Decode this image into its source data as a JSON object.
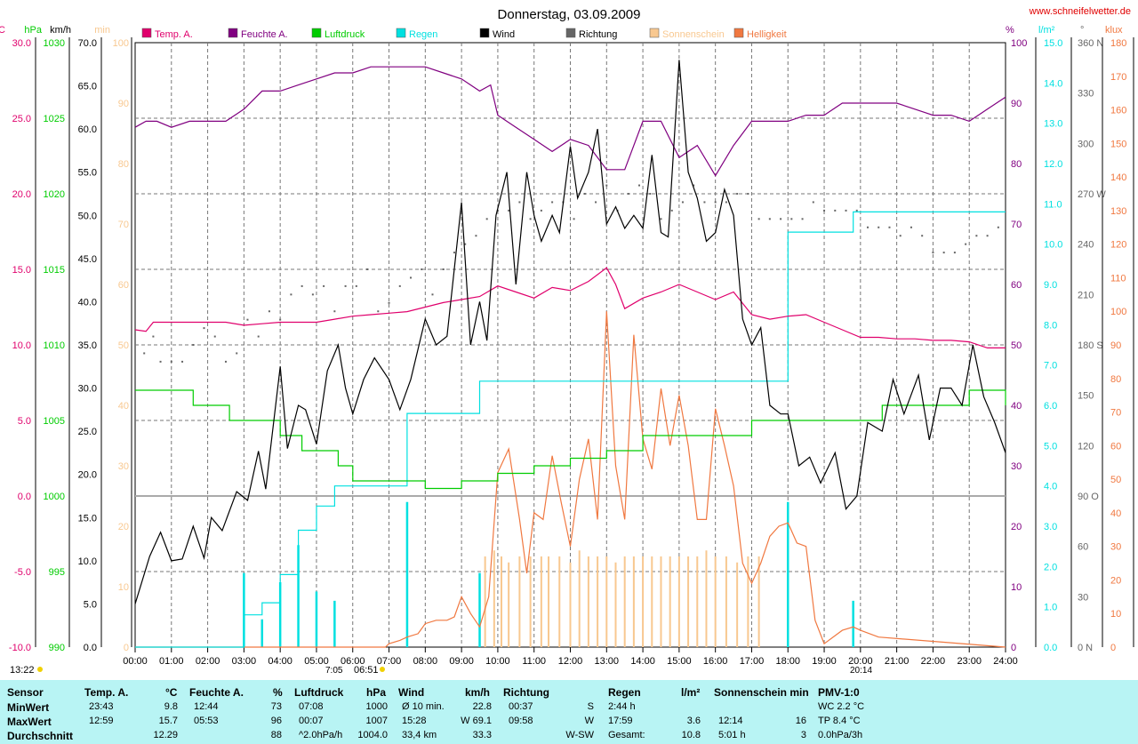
{
  "page": {
    "title": "Donnerstag, 03.09.2009",
    "site": "www.schneifelwetter.de",
    "sunrise_left": "13:22",
    "sunrise_mark": "7:05",
    "sunrise_time": "06:51",
    "sunset_mark": "20:14"
  },
  "colors": {
    "temp": "#e0006c",
    "humidity": "#800080",
    "pressure": "#00cc00",
    "rain": "#00e0e0",
    "wind": "#000000",
    "direction": "#666666",
    "sunshine": "#f8c890",
    "brightness": "#f07840",
    "stats_bg": "#b8f4f4"
  },
  "legend": [
    {
      "label": "Temp. A.",
      "color": "#e0006c"
    },
    {
      "label": "Feuchte A.",
      "color": "#800080"
    },
    {
      "label": "Luftdruck",
      "color": "#00cc00"
    },
    {
      "label": "Regen",
      "color": "#00e0e0"
    },
    {
      "label": "Wind",
      "color": "#000000"
    },
    {
      "label": "Richtung",
      "color": "#666666"
    },
    {
      "label": "Sonnenschein",
      "color": "#f8c890"
    },
    {
      "label": "Helligkeit",
      "color": "#f07840"
    }
  ],
  "axes": {
    "temp": {
      "unit": "°C",
      "min": -10,
      "max": 30,
      "ticks": [
        "30.0",
        "25.0",
        "20.0",
        "15.0",
        "10.0",
        "5.0",
        "0.0",
        "-5.0",
        "-10.0"
      ]
    },
    "pressure": {
      "unit": "hPa",
      "min": 990,
      "max": 1030,
      "ticks": [
        "1030",
        "1025",
        "1020",
        "1015",
        "1010",
        "1005",
        "1000",
        "995",
        "990"
      ]
    },
    "wind": {
      "unit": "km/h",
      "min": 0,
      "max": 70,
      "ticks": [
        "70.0",
        "65.0",
        "60.0",
        "55.0",
        "50.0",
        "45.0",
        "40.0",
        "35.0",
        "30.0",
        "25.0",
        "20.0",
        "15.0",
        "10.0",
        "5.0",
        "0.0"
      ]
    },
    "sunshine": {
      "unit": "min",
      "min": 0,
      "max": 100,
      "ticks": [
        "100",
        "90",
        "80",
        "70",
        "60",
        "50",
        "40",
        "30",
        "20",
        "10",
        "0"
      ]
    },
    "humidity": {
      "unit": "%",
      "min": 0,
      "max": 100,
      "ticks": [
        "100",
        "90",
        "80",
        "70",
        "60",
        "50",
        "40",
        "30",
        "20",
        "10",
        "0"
      ]
    },
    "rain": {
      "unit": "l/m²",
      "min": 0,
      "max": 15,
      "ticks": [
        "15.0",
        "14.0",
        "13.0",
        "12.0",
        "11.0",
        "10.0",
        "9.0",
        "8.0",
        "7.0",
        "6.0",
        "5.0",
        "4.0",
        "3.0",
        "2.0",
        "1.0",
        "0.0"
      ]
    },
    "direction": {
      "unit": "°",
      "min": 0,
      "max": 360,
      "ticks": [
        "360 N",
        "330",
        "300",
        "270 W",
        "240",
        "210",
        "180 S",
        "150",
        "120",
        "90 O",
        "60",
        "30",
        "0 N"
      ]
    },
    "brightness": {
      "unit": "klux",
      "min": 0,
      "max": 180,
      "ticks": [
        "180",
        "170",
        "160",
        "150",
        "140",
        "130",
        "120",
        "110",
        "100",
        "90",
        "80",
        "70",
        "60",
        "50",
        "40",
        "30",
        "20",
        "10",
        "0"
      ]
    },
    "time_ticks": [
      "00:00",
      "01:00",
      "02:00",
      "03:00",
      "04:00",
      "05:00",
      "06:00",
      "07:00",
      "08:00",
      "09:00",
      "10:00",
      "11:00",
      "12:00",
      "13:00",
      "14:00",
      "15:00",
      "16:00",
      "17:00",
      "18:00",
      "19:00",
      "20:00",
      "21:00",
      "22:00",
      "23:00",
      "24:00"
    ]
  },
  "chart_data": {
    "type": "line",
    "title": "Donnerstag, 03.09.2009",
    "x_range": [
      0,
      24
    ],
    "grid": true,
    "legend_placement": "top",
    "series": [
      {
        "name": "Temp. A.",
        "unit": "°C",
        "x": [
          0,
          0.3,
          0.5,
          1,
          1.5,
          2,
          2.5,
          3,
          3.5,
          4,
          4.5,
          5,
          5.5,
          6,
          6.5,
          7,
          7.5,
          8,
          8.5,
          9,
          9.5,
          10,
          10.5,
          11,
          11.5,
          12,
          12.5,
          13,
          13.25,
          13.5,
          14,
          14.5,
          15,
          15.5,
          16,
          16.5,
          17,
          17.5,
          18,
          18.5,
          19,
          19.5,
          20,
          20.5,
          21,
          21.5,
          22,
          22.5,
          23,
          23.5,
          24
        ],
        "y": [
          11.0,
          10.9,
          11.5,
          11.5,
          11.5,
          11.5,
          11.5,
          11.3,
          11.4,
          11.5,
          11.5,
          11.5,
          11.7,
          11.9,
          12.0,
          12.1,
          12.2,
          12.5,
          12.8,
          13.0,
          13.2,
          13.9,
          13.5,
          13.1,
          13.8,
          13.6,
          14.2,
          15.1,
          14.0,
          12.4,
          13.1,
          13.5,
          14.0,
          13.5,
          13.0,
          13.5,
          12.0,
          11.7,
          11.9,
          12.0,
          11.5,
          11.0,
          10.5,
          10.5,
          10.4,
          10.4,
          10.3,
          10.3,
          10.2,
          9.8,
          9.8
        ]
      },
      {
        "name": "Feuchte A.",
        "unit": "%",
        "x": [
          0,
          0.3,
          0.6,
          1,
          1.5,
          2,
          2.5,
          3,
          3.5,
          4,
          4.5,
          5,
          5.5,
          6,
          6.5,
          7,
          7.5,
          8,
          8.5,
          9,
          9.5,
          9.8,
          10,
          10.5,
          11,
          11.5,
          12,
          12.5,
          13,
          13.5,
          14,
          14.5,
          15,
          15.5,
          16,
          16.5,
          17,
          17.5,
          18,
          18.5,
          19,
          19.5,
          20,
          20.5,
          21,
          21.5,
          22,
          22.5,
          23,
          23.5,
          24
        ],
        "y": [
          86,
          87,
          87,
          86,
          87,
          87,
          87,
          89,
          92,
          92,
          93,
          94,
          95,
          95,
          96,
          96,
          96,
          96,
          95,
          94,
          92,
          93,
          88,
          86,
          84,
          82,
          84,
          83,
          79,
          79,
          87,
          87,
          81,
          83,
          78,
          83,
          87,
          87,
          87,
          88,
          88,
          90,
          90,
          90,
          90,
          89,
          88,
          88,
          87,
          89,
          91
        ]
      },
      {
        "name": "Luftdruck",
        "unit": "hPa",
        "x": [
          0,
          0.6,
          1,
          1.6,
          2,
          2.6,
          3,
          3.6,
          4,
          4.6,
          5,
          5.6,
          6,
          6.6,
          7,
          7.6,
          8,
          8.6,
          9,
          9.6,
          10,
          10.6,
          11,
          11.6,
          12,
          12.6,
          13,
          13.6,
          14,
          14.6,
          15,
          15.6,
          16,
          16.6,
          17,
          17.6,
          18,
          18.6,
          19,
          19.6,
          20,
          20.6,
          21,
          21.6,
          22,
          22.6,
          23,
          23.6,
          24
        ],
        "y": [
          1007,
          1007,
          1007,
          1006,
          1006,
          1005,
          1005,
          1005,
          1004,
          1003,
          1003,
          1002,
          1001,
          1001,
          1001,
          1001,
          1000.5,
          1000.5,
          1001,
          1001,
          1001.5,
          1001.5,
          1002,
          1002,
          1002.5,
          1002.5,
          1003,
          1003,
          1004,
          1004,
          1004,
          1004,
          1004,
          1004,
          1005,
          1005,
          1005,
          1005,
          1005,
          1005,
          1005,
          1006,
          1006,
          1006,
          1006,
          1006,
          1007,
          1007,
          1006
        ]
      },
      {
        "name": "Regen",
        "unit": "l/m²",
        "x": [
          0,
          2.7,
          3,
          3.5,
          4,
          4.5,
          5,
          5.5,
          6,
          6.5,
          7,
          7.25,
          7.5,
          8,
          8.5,
          9,
          9.3,
          9.5,
          10,
          11,
          12,
          13,
          14,
          15,
          16,
          17,
          17.9,
          18,
          19,
          19.5,
          19.8,
          20,
          21,
          22,
          23,
          24
        ],
        "y": [
          0,
          0,
          0.8,
          1.1,
          1.8,
          2.9,
          3.5,
          4.0,
          4.0,
          4.0,
          4.0,
          4.0,
          5.8,
          5.8,
          5.8,
          5.8,
          5.8,
          6.6,
          6.6,
          6.6,
          6.6,
          6.6,
          6.6,
          6.6,
          6.6,
          6.6,
          6.6,
          10.3,
          10.3,
          10.3,
          10.8,
          10.8,
          10.8,
          10.8,
          10.8,
          10.8
        ]
      },
      {
        "name": "Wind",
        "unit": "km/h",
        "x": [
          0,
          0.4,
          0.7,
          1,
          1.3,
          1.6,
          1.9,
          2.1,
          2.4,
          2.8,
          3.1,
          3.4,
          3.6,
          4,
          4.2,
          4.5,
          4.7,
          5,
          5.3,
          5.6,
          5.8,
          6,
          6.3,
          6.6,
          7,
          7.3,
          7.6,
          8,
          8.3,
          8.6,
          9,
          9.25,
          9.5,
          9.7,
          9.95,
          10.25,
          10.5,
          10.8,
          11,
          11.2,
          11.5,
          11.7,
          12,
          12.2,
          12.5,
          12.75,
          13,
          13.25,
          13.5,
          13.75,
          14,
          14.25,
          14.5,
          14.7,
          15,
          15.25,
          15.5,
          15.75,
          16,
          16.25,
          16.5,
          16.75,
          17,
          17.25,
          17.5,
          17.8,
          18,
          18.3,
          18.6,
          18.9,
          19.3,
          19.6,
          19.9,
          20.2,
          20.6,
          20.9,
          21.2,
          21.6,
          21.9,
          22.2,
          22.5,
          22.8,
          23.1,
          23.4,
          23.7,
          24
        ],
        "y": [
          5,
          10.5,
          13.3,
          10,
          10.2,
          14,
          10.3,
          15,
          13.5,
          18,
          17,
          22.7,
          18.3,
          32.5,
          23,
          28,
          27.5,
          23.5,
          32,
          35,
          30,
          27,
          31,
          33.5,
          31,
          27.5,
          31,
          38,
          35,
          36,
          51.5,
          35,
          40,
          35.5,
          50,
          55,
          42,
          55,
          50,
          47,
          50,
          48,
          58,
          52,
          55,
          60,
          49,
          51,
          48.5,
          50,
          48.5,
          57,
          48,
          47.5,
          68,
          55,
          52,
          47,
          48,
          53,
          50,
          38,
          35,
          37,
          28,
          27,
          27,
          21,
          22,
          19,
          22.5,
          16,
          17.5,
          26,
          25,
          31,
          27,
          31.5,
          24,
          30,
          30,
          28,
          35,
          29,
          26,
          22.5
        ]
      },
      {
        "name": "Richtung",
        "unit": "°",
        "x": [
          0.25,
          0.5,
          0.7,
          1,
          1.3,
          1.6,
          1.9,
          2.2,
          2.5,
          2.8,
          3.1,
          3.4,
          3.7,
          4,
          4.3,
          4.6,
          4.9,
          5.2,
          5.5,
          5.8,
          6.1,
          6.4,
          6.7,
          7,
          7.3,
          7.6,
          7.9,
          8.2,
          8.5,
          8.8,
          9.1,
          9.4,
          9.7,
          10,
          10.3,
          10.6,
          10.9,
          11.2,
          11.5,
          11.8,
          12.1,
          12.4,
          12.7,
          13,
          13.3,
          13.6,
          13.9,
          14.2,
          14.5,
          14.8,
          15.1,
          15.4,
          15.7,
          16,
          16.3,
          16.6,
          16.9,
          17.2,
          17.5,
          17.8,
          18.1,
          18.4,
          18.7,
          19.0,
          19.3,
          19.6,
          19.9,
          20.2,
          20.5,
          20.8,
          21.1,
          21.4,
          21.7,
          22,
          22.3,
          22.6,
          22.9,
          23.2,
          23.5,
          23.8
        ],
        "y": [
          175,
          185,
          170,
          170,
          170,
          180,
          190,
          185,
          170,
          175,
          195,
          185,
          200,
          195,
          210,
          215,
          210,
          215,
          200,
          215,
          215,
          225,
          200,
          205,
          215,
          220,
          225,
          210,
          225,
          235,
          240,
          245,
          255,
          260,
          260,
          265,
          255,
          260,
          265,
          265,
          255,
          270,
          265,
          275,
          260,
          270,
          275,
          270,
          255,
          260,
          265,
          275,
          265,
          265,
          265,
          270,
          270,
          255,
          255,
          255,
          255,
          255,
          265,
          260,
          260,
          260,
          260,
          250,
          250,
          250,
          245,
          250,
          245,
          235,
          235,
          235,
          240,
          245,
          245,
          250
        ]
      },
      {
        "name": "Sonnenschein",
        "unit": "min",
        "x": [
          9.65,
          9.9,
          10.1,
          10.3,
          10.6,
          10.9,
          11.2,
          11.4,
          11.7,
          12,
          12.25,
          12.5,
          12.75,
          13,
          13.25,
          13.5,
          13.75,
          14,
          14.25,
          14.5,
          14.75,
          15,
          15.25,
          15.5,
          15.75,
          16,
          16.3,
          16.6,
          16.9,
          17.2
        ],
        "y": [
          15,
          16,
          15,
          14,
          15,
          15,
          15,
          15,
          15,
          14,
          16,
          15,
          15,
          15,
          14,
          15,
          15,
          15,
          15,
          15,
          15,
          15,
          15,
          15,
          16,
          15,
          15,
          14,
          15,
          15
        ]
      },
      {
        "name": "Helligkeit",
        "unit": "klux",
        "x": [
          0,
          6.9,
          7,
          7.3,
          7.5,
          7.8,
          8,
          8.3,
          8.6,
          8.8,
          9,
          9.25,
          9.5,
          9.75,
          10,
          10.3,
          10.6,
          10.8,
          11,
          11.25,
          11.5,
          11.75,
          12,
          12.25,
          12.5,
          12.75,
          13,
          13.25,
          13.5,
          13.75,
          14,
          14.25,
          14.5,
          14.75,
          15,
          15.25,
          15.5,
          15.75,
          16,
          16.25,
          16.5,
          16.75,
          17,
          17.25,
          17.5,
          17.75,
          18,
          18.25,
          18.5,
          18.75,
          19,
          19.5,
          19.8,
          20,
          20.5,
          24
        ],
        "y": [
          0,
          0,
          1,
          2,
          3,
          4,
          7,
          8,
          8,
          9,
          15,
          10,
          6,
          15,
          52,
          59,
          38,
          22,
          40,
          38,
          57,
          43,
          30,
          50,
          62,
          38,
          100,
          54,
          38,
          93,
          62,
          53,
          77,
          60,
          75,
          60,
          38,
          38,
          71,
          60,
          48,
          25,
          19,
          25,
          33,
          36,
          37,
          31,
          30,
          8,
          1,
          5,
          6,
          5,
          3,
          0
        ]
      }
    ]
  },
  "stats": {
    "headers": {
      "sensor": "Sensor",
      "temp": "Temp. A.",
      "temp_unit": "°C",
      "hum": "Feuchte A.",
      "hum_unit": "%",
      "press": "Luftdruck",
      "press_unit": "hPa",
      "wind": "Wind",
      "wind_unit": "km/h",
      "dir": "Richtung",
      "rain": "Regen",
      "rain_unit": "l/m²",
      "sun": "Sonnenschein min",
      "pmv": "PMV-1:0"
    },
    "rows": [
      {
        "label": "MinWert",
        "temp_t": "23:43",
        "temp_v": "9.8",
        "hum_t": "12:44",
        "hum_v": "73",
        "press_t": "07:08",
        "press_v": "1000",
        "wind_t": "Ø 10 min.",
        "wind_v": "22.8",
        "dir_t": "00:37",
        "dir_v": "S",
        "rain_t": "2:44 h",
        "rain_v": "",
        "sun_t": "",
        "sun_v": "",
        "pmv": "WC 2.2 °C"
      },
      {
        "label": "MaxWert",
        "temp_t": "12:59",
        "temp_v": "15.7",
        "hum_t": "05:53",
        "hum_v": "96",
        "press_t": "00:07",
        "press_v": "1007",
        "wind_t": "15:28",
        "wind_v": "W 69.1",
        "dir_t": "09:58",
        "dir_v": "W",
        "rain_t": "17:59",
        "rain_v": "3.6",
        "sun_t": "12:14",
        "sun_v": "16",
        "pmv": "TP 8.4 °C"
      },
      {
        "label": "Durchschnitt",
        "temp_t": "",
        "temp_v": "12.29",
        "hum_t": "",
        "hum_v": "88",
        "press_t": "^2.0hPa/h",
        "press_v": "1004.0",
        "wind_t": "33,4 km",
        "wind_v": "33.3",
        "dir_t": "",
        "dir_v": "W-SW",
        "rain_t": "Gesamt:",
        "rain_v": "10.8",
        "sun_t": "5:01 h",
        "sun_v": "3",
        "pmv": "0.0hPa/3h"
      }
    ]
  }
}
